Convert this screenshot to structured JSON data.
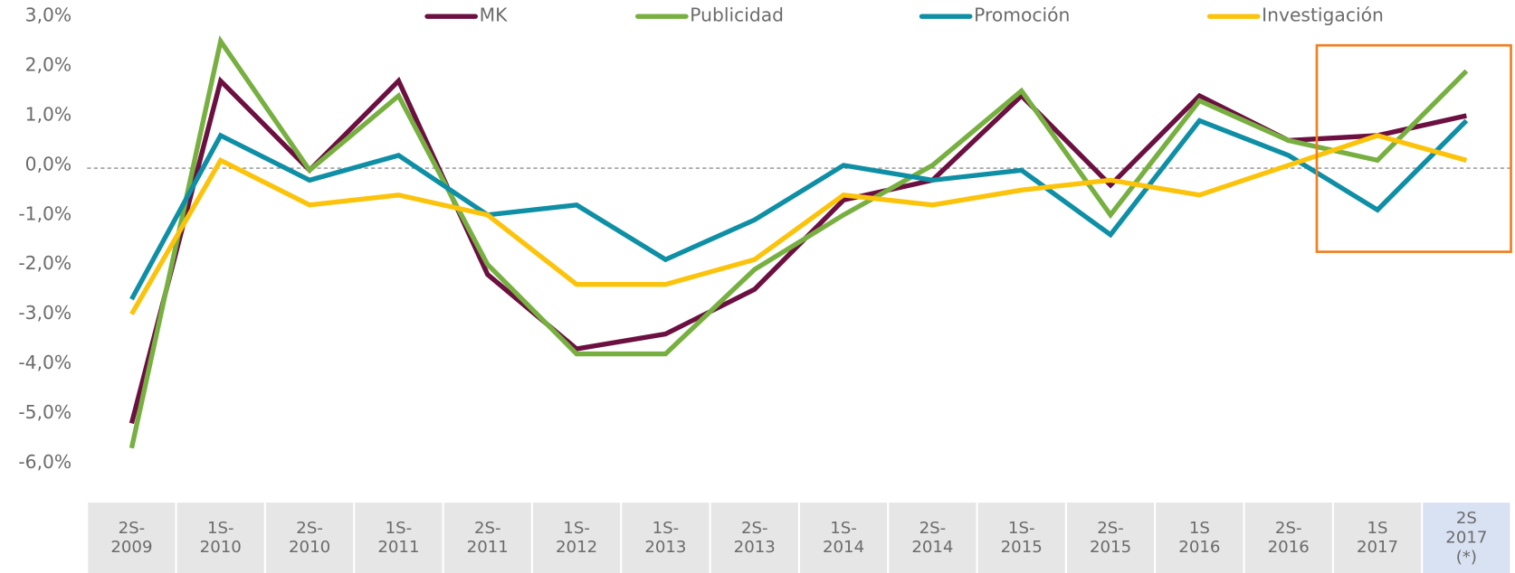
{
  "chart_data": {
    "type": "line",
    "categories": [
      [
        "2S-",
        "2009"
      ],
      [
        "1S-",
        "2010"
      ],
      [
        "2S-",
        "2010"
      ],
      [
        "1S-",
        "2011"
      ],
      [
        "2S-",
        "2011"
      ],
      [
        "1S-",
        "2012"
      ],
      [
        "1S-",
        "2013"
      ],
      [
        "2S-",
        "2013"
      ],
      [
        "1S-",
        "2014"
      ],
      [
        "2S-",
        "2014"
      ],
      [
        "1S-",
        "2015"
      ],
      [
        "2S-",
        "2015"
      ],
      [
        "1S",
        "2016"
      ],
      [
        "2S-",
        "2016"
      ],
      [
        "1S",
        "2017"
      ],
      [
        "2S",
        "2017",
        "(*)"
      ]
    ],
    "series": [
      {
        "name": "MK",
        "color": "#6b1040",
        "values": [
          -5.2,
          1.7,
          -0.1,
          1.7,
          -2.2,
          -3.7,
          -3.4,
          -2.5,
          -0.7,
          -0.3,
          1.4,
          -0.4,
          1.4,
          0.5,
          0.6,
          1.0
        ]
      },
      {
        "name": "Publicidad",
        "color": "#77b041",
        "values": [
          -5.7,
          2.5,
          -0.1,
          1.4,
          -2.0,
          -3.8,
          -3.8,
          -2.1,
          -1.0,
          0.0,
          1.5,
          -1.0,
          1.3,
          0.5,
          0.1,
          1.9
        ]
      },
      {
        "name": "Promoción",
        "color": "#0e8fa5",
        "values": [
          -2.7,
          0.6,
          -0.3,
          0.2,
          -1.0,
          -0.8,
          -1.9,
          -1.1,
          0.0,
          -0.3,
          -0.1,
          -1.4,
          0.9,
          0.2,
          -0.9,
          0.9
        ]
      },
      {
        "name": "Investigación",
        "color": "#fcc30b",
        "values": [
          -3.0,
          0.1,
          -0.8,
          -0.6,
          -1.0,
          -2.4,
          -2.4,
          -1.9,
          -0.6,
          -0.8,
          -0.5,
          -0.3,
          -0.6,
          0.0,
          0.6,
          0.1
        ]
      }
    ],
    "ylim": [
      -6,
      3
    ],
    "yticks": [
      {
        "value": -6,
        "label": "-6,0%"
      },
      {
        "value": -5,
        "label": "-5,0%"
      },
      {
        "value": -4,
        "label": "-4,0%"
      },
      {
        "value": -3,
        "label": "-3,0%"
      },
      {
        "value": -2,
        "label": "-2,0%"
      },
      {
        "value": -1,
        "label": "-1,0%"
      },
      {
        "value": 0,
        "label": "0,0%"
      },
      {
        "value": 1,
        "label": "1,0%"
      },
      {
        "value": 2,
        "label": "2,0%"
      },
      {
        "value": 3,
        "label": "3,0%"
      }
    ],
    "grid": false,
    "legend": "top"
  }
}
